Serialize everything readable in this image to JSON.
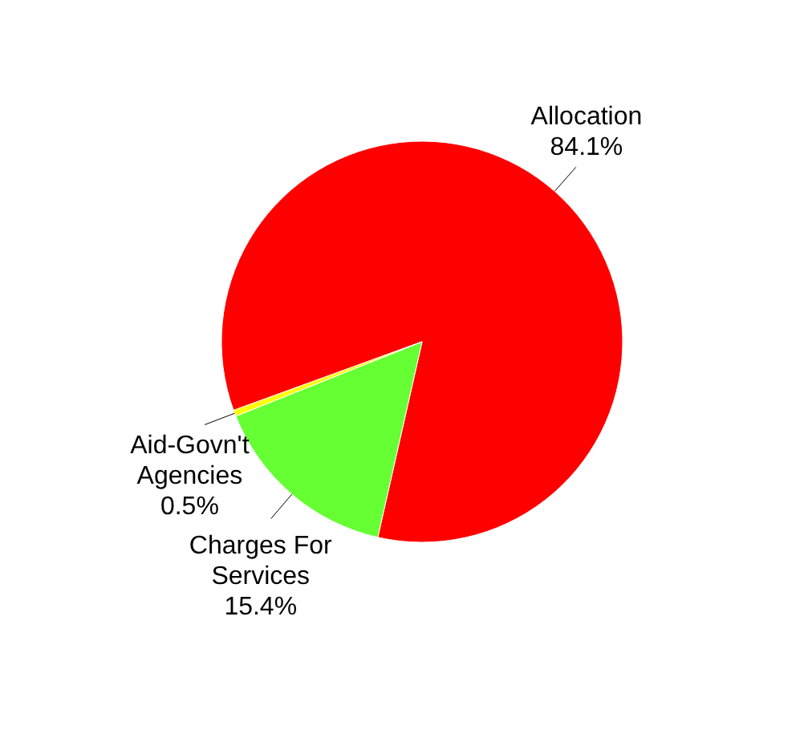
{
  "chart_data": {
    "type": "pie",
    "categories": [
      "Allocation",
      "Charges For Services",
      "Aid-Govn't Agencies"
    ],
    "values": [
      84.1,
      15.4,
      0.5
    ],
    "value_labels": [
      "84.1%",
      "15.4%",
      "0.5%"
    ],
    "colors": [
      "#ff0000",
      "#66ff33",
      "#ffff00"
    ]
  }
}
